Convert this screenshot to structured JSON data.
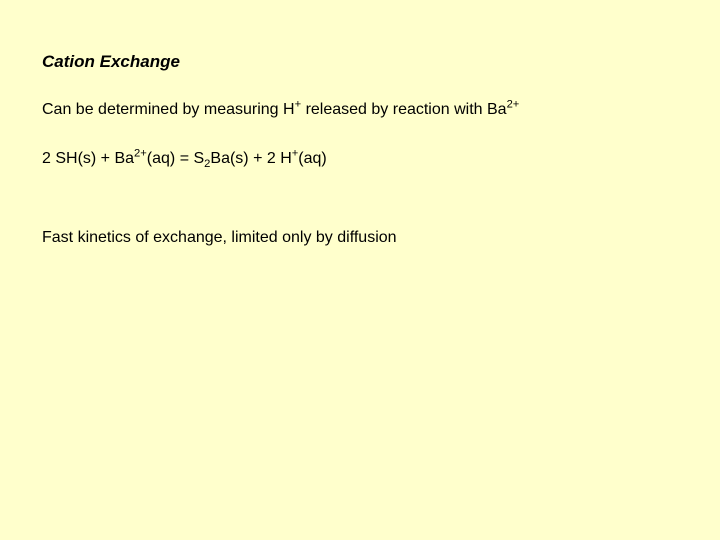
{
  "slide": {
    "background_color": "#ffffcc",
    "text_color": "#000000",
    "title_fontsize": 17,
    "body_fontsize": 16,
    "title": "Cation Exchange",
    "line1": {
      "parts": [
        {
          "t": "Can be determined by measuring H"
        },
        {
          "t": "+",
          "sup": true
        },
        {
          "t": " released by reaction with Ba"
        },
        {
          "t": "2+",
          "sup": true
        }
      ]
    },
    "line2": {
      "parts": [
        {
          "t": "2 SH(s) + Ba"
        },
        {
          "t": "2+",
          "sup": true
        },
        {
          "t": "(aq) = S"
        },
        {
          "t": "2",
          "sub": true
        },
        {
          "t": "Ba(s) + 2 H"
        },
        {
          "t": "+",
          "sup": true
        },
        {
          "t": "(aq)"
        }
      ]
    },
    "line3": "Fast kinetics of exchange, limited only by diffusion"
  }
}
